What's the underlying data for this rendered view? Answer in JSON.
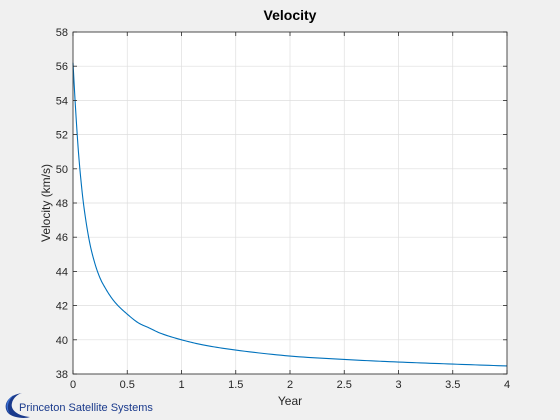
{
  "chart_data": {
    "type": "line",
    "title": "Velocity",
    "xlabel": "Year",
    "ylabel": "Velocity (km/s)",
    "xlim": [
      0,
      4
    ],
    "ylim": [
      38,
      58
    ],
    "xticks": [
      0,
      0.5,
      1,
      1.5,
      2,
      2.5,
      3,
      3.5,
      4
    ],
    "xtick_labels": [
      "0",
      "0.5",
      "1",
      "1.5",
      "2",
      "2.5",
      "3",
      "3.5",
      "4"
    ],
    "yticks": [
      38,
      40,
      42,
      44,
      46,
      48,
      50,
      52,
      54,
      56,
      58
    ],
    "ytick_labels": [
      "38",
      "40",
      "42",
      "44",
      "46",
      "48",
      "50",
      "52",
      "54",
      "56",
      "58"
    ],
    "grid": true,
    "series": [
      {
        "color": "#0072bd",
        "x": [
          0,
          0.02,
          0.05,
          0.08,
          0.1,
          0.15,
          0.2,
          0.25,
          0.3,
          0.35,
          0.4,
          0.5,
          0.6,
          0.7,
          0.8,
          1.0,
          1.2,
          1.5,
          2.0,
          2.5,
          3.0,
          3.5,
          4.0
        ],
        "y": [
          56.2,
          53.9,
          51.0,
          48.9,
          47.8,
          45.8,
          44.5,
          43.6,
          43.0,
          42.5,
          42.1,
          41.5,
          41.0,
          40.7,
          40.4,
          40.0,
          39.7,
          39.4,
          39.05,
          38.85,
          38.7,
          38.58,
          38.47
        ]
      }
    ]
  },
  "logo": {
    "text": "Princeton Satellite Systems",
    "color": "#1a3a8c"
  }
}
